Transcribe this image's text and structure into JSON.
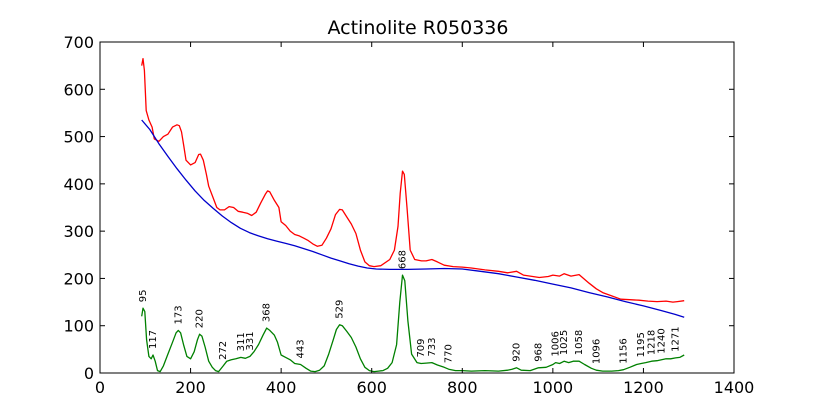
{
  "chart_data": {
    "type": "line",
    "title": "Actinolite R050336",
    "xlabel": "",
    "ylabel": "",
    "xlim": [
      0,
      1400
    ],
    "ylim": [
      0,
      700
    ],
    "grid": false,
    "x_ticks": [
      0,
      200,
      400,
      600,
      800,
      1000,
      1200,
      1400
    ],
    "y_ticks": [
      0,
      100,
      200,
      300,
      400,
      500,
      600,
      700
    ],
    "series": [
      {
        "color": "#ff0000",
        "points": [
          [
            92,
            650
          ],
          [
            95,
            665
          ],
          [
            98,
            640
          ],
          [
            102,
            555
          ],
          [
            108,
            535
          ],
          [
            115,
            520
          ],
          [
            120,
            495
          ],
          [
            130,
            490
          ],
          [
            140,
            500
          ],
          [
            150,
            505
          ],
          [
            160,
            520
          ],
          [
            170,
            525
          ],
          [
            175,
            523
          ],
          [
            180,
            510
          ],
          [
            185,
            480
          ],
          [
            190,
            450
          ],
          [
            200,
            440
          ],
          [
            210,
            445
          ],
          [
            218,
            462
          ],
          [
            222,
            463
          ],
          [
            228,
            450
          ],
          [
            235,
            420
          ],
          [
            240,
            395
          ],
          [
            250,
            370
          ],
          [
            258,
            350
          ],
          [
            265,
            345
          ],
          [
            275,
            345
          ],
          [
            285,
            352
          ],
          [
            295,
            350
          ],
          [
            305,
            342
          ],
          [
            315,
            340
          ],
          [
            325,
            338
          ],
          [
            335,
            333
          ],
          [
            345,
            340
          ],
          [
            355,
            360
          ],
          [
            365,
            378
          ],
          [
            370,
            385
          ],
          [
            375,
            383
          ],
          [
            385,
            365
          ],
          [
            395,
            350
          ],
          [
            400,
            320
          ],
          [
            410,
            312
          ],
          [
            420,
            300
          ],
          [
            430,
            293
          ],
          [
            440,
            290
          ],
          [
            450,
            285
          ],
          [
            460,
            280
          ],
          [
            470,
            273
          ],
          [
            480,
            268
          ],
          [
            490,
            270
          ],
          [
            500,
            285
          ],
          [
            510,
            305
          ],
          [
            520,
            335
          ],
          [
            529,
            346
          ],
          [
            535,
            345
          ],
          [
            545,
            330
          ],
          [
            555,
            315
          ],
          [
            565,
            295
          ],
          [
            575,
            260
          ],
          [
            585,
            235
          ],
          [
            595,
            227
          ],
          [
            605,
            225
          ],
          [
            620,
            227
          ],
          [
            640,
            240
          ],
          [
            650,
            260
          ],
          [
            658,
            310
          ],
          [
            663,
            380
          ],
          [
            668,
            427
          ],
          [
            672,
            420
          ],
          [
            678,
            350
          ],
          [
            685,
            260
          ],
          [
            695,
            240
          ],
          [
            710,
            237
          ],
          [
            720,
            237
          ],
          [
            733,
            240
          ],
          [
            745,
            235
          ],
          [
            760,
            228
          ],
          [
            780,
            225
          ],
          [
            800,
            224
          ],
          [
            820,
            222
          ],
          [
            850,
            218
          ],
          [
            880,
            215
          ],
          [
            900,
            212
          ],
          [
            920,
            215
          ],
          [
            935,
            207
          ],
          [
            950,
            205
          ],
          [
            970,
            202
          ],
          [
            990,
            204
          ],
          [
            1000,
            207
          ],
          [
            1015,
            205
          ],
          [
            1025,
            210
          ],
          [
            1040,
            205
          ],
          [
            1058,
            208
          ],
          [
            1070,
            198
          ],
          [
            1080,
            190
          ],
          [
            1096,
            178
          ],
          [
            1110,
            170
          ],
          [
            1130,
            163
          ],
          [
            1150,
            156
          ],
          [
            1170,
            155
          ],
          [
            1190,
            154
          ],
          [
            1210,
            152
          ],
          [
            1230,
            151
          ],
          [
            1250,
            152
          ],
          [
            1265,
            150
          ],
          [
            1275,
            151
          ],
          [
            1290,
            153
          ]
        ]
      },
      {
        "color": "#0000cc",
        "points": [
          [
            92,
            535
          ],
          [
            110,
            515
          ],
          [
            130,
            485
          ],
          [
            150,
            458
          ],
          [
            170,
            432
          ],
          [
            190,
            408
          ],
          [
            210,
            385
          ],
          [
            230,
            365
          ],
          [
            250,
            348
          ],
          [
            270,
            332
          ],
          [
            290,
            318
          ],
          [
            310,
            306
          ],
          [
            330,
            297
          ],
          [
            350,
            290
          ],
          [
            370,
            284
          ],
          [
            390,
            279
          ],
          [
            410,
            274
          ],
          [
            430,
            269
          ],
          [
            450,
            263
          ],
          [
            470,
            257
          ],
          [
            490,
            250
          ],
          [
            510,
            243
          ],
          [
            530,
            237
          ],
          [
            550,
            231
          ],
          [
            570,
            226
          ],
          [
            590,
            222
          ],
          [
            610,
            220
          ],
          [
            640,
            219
          ],
          [
            680,
            219
          ],
          [
            720,
            220
          ],
          [
            760,
            221
          ],
          [
            800,
            220
          ],
          [
            840,
            215
          ],
          [
            880,
            210
          ],
          [
            920,
            203
          ],
          [
            960,
            196
          ],
          [
            1000,
            188
          ],
          [
            1040,
            180
          ],
          [
            1080,
            170
          ],
          [
            1120,
            161
          ],
          [
            1160,
            151
          ],
          [
            1200,
            142
          ],
          [
            1240,
            132
          ],
          [
            1270,
            124
          ],
          [
            1290,
            118
          ]
        ]
      },
      {
        "color": "#008000",
        "points": [
          [
            92,
            120
          ],
          [
            95,
            137
          ],
          [
            99,
            130
          ],
          [
            103,
            70
          ],
          [
            108,
            35
          ],
          [
            113,
            30
          ],
          [
            117,
            38
          ],
          [
            122,
            25
          ],
          [
            127,
            5
          ],
          [
            133,
            3
          ],
          [
            140,
            15
          ],
          [
            150,
            40
          ],
          [
            160,
            65
          ],
          [
            168,
            85
          ],
          [
            173,
            90
          ],
          [
            178,
            85
          ],
          [
            185,
            58
          ],
          [
            192,
            35
          ],
          [
            200,
            30
          ],
          [
            208,
            45
          ],
          [
            215,
            70
          ],
          [
            220,
            82
          ],
          [
            225,
            78
          ],
          [
            232,
            55
          ],
          [
            240,
            25
          ],
          [
            248,
            12
          ],
          [
            255,
            5
          ],
          [
            262,
            3
          ],
          [
            272,
            15
          ],
          [
            280,
            25
          ],
          [
            290,
            28
          ],
          [
            300,
            30
          ],
          [
            311,
            33
          ],
          [
            321,
            31
          ],
          [
            331,
            35
          ],
          [
            340,
            45
          ],
          [
            350,
            60
          ],
          [
            360,
            80
          ],
          [
            368,
            95
          ],
          [
            375,
            90
          ],
          [
            385,
            80
          ],
          [
            392,
            65
          ],
          [
            400,
            38
          ],
          [
            410,
            33
          ],
          [
            420,
            28
          ],
          [
            430,
            20
          ],
          [
            443,
            18
          ],
          [
            455,
            10
          ],
          [
            465,
            4
          ],
          [
            475,
            3
          ],
          [
            485,
            6
          ],
          [
            495,
            15
          ],
          [
            505,
            40
          ],
          [
            515,
            70
          ],
          [
            522,
            92
          ],
          [
            529,
            102
          ],
          [
            535,
            100
          ],
          [
            545,
            88
          ],
          [
            555,
            75
          ],
          [
            565,
            55
          ],
          [
            575,
            30
          ],
          [
            585,
            12
          ],
          [
            595,
            5
          ],
          [
            605,
            3
          ],
          [
            615,
            4
          ],
          [
            625,
            5
          ],
          [
            635,
            10
          ],
          [
            645,
            22
          ],
          [
            655,
            60
          ],
          [
            662,
            150
          ],
          [
            668,
            207
          ],
          [
            673,
            195
          ],
          [
            680,
            110
          ],
          [
            688,
            40
          ],
          [
            700,
            22
          ],
          [
            709,
            20
          ],
          [
            720,
            21
          ],
          [
            733,
            22
          ],
          [
            745,
            17
          ],
          [
            760,
            12
          ],
          [
            770,
            8
          ],
          [
            785,
            5
          ],
          [
            800,
            5
          ],
          [
            820,
            4
          ],
          [
            850,
            5
          ],
          [
            880,
            4
          ],
          [
            900,
            6
          ],
          [
            910,
            8
          ],
          [
            920,
            11
          ],
          [
            930,
            6
          ],
          [
            950,
            5
          ],
          [
            968,
            11
          ],
          [
            985,
            12
          ],
          [
            1000,
            18
          ],
          [
            1006,
            22
          ],
          [
            1015,
            20
          ],
          [
            1025,
            25
          ],
          [
            1035,
            22
          ],
          [
            1045,
            25
          ],
          [
            1058,
            25
          ],
          [
            1070,
            18
          ],
          [
            1085,
            10
          ],
          [
            1096,
            6
          ],
          [
            1110,
            4
          ],
          [
            1130,
            4
          ],
          [
            1145,
            5
          ],
          [
            1156,
            7
          ],
          [
            1170,
            12
          ],
          [
            1185,
            18
          ],
          [
            1195,
            20
          ],
          [
            1205,
            22
          ],
          [
            1218,
            25
          ],
          [
            1230,
            26
          ],
          [
            1240,
            28
          ],
          [
            1250,
            30
          ],
          [
            1260,
            30
          ],
          [
            1271,
            32
          ],
          [
            1280,
            33
          ],
          [
            1290,
            38
          ]
        ]
      }
    ],
    "peak_labels": [
      {
        "x": 95,
        "y": 137,
        "text": "95"
      },
      {
        "x": 117,
        "y": 38,
        "text": "117"
      },
      {
        "x": 173,
        "y": 90,
        "text": "173"
      },
      {
        "x": 220,
        "y": 82,
        "text": "220"
      },
      {
        "x": 272,
        "y": 15,
        "text": "272"
      },
      {
        "x": 311,
        "y": 33,
        "text": "311"
      },
      {
        "x": 331,
        "y": 35,
        "text": "331"
      },
      {
        "x": 368,
        "y": 95,
        "text": "368"
      },
      {
        "x": 443,
        "y": 18,
        "text": "443"
      },
      {
        "x": 529,
        "y": 102,
        "text": "529"
      },
      {
        "x": 668,
        "y": 207,
        "text": "668"
      },
      {
        "x": 709,
        "y": 20,
        "text": "709"
      },
      {
        "x": 733,
        "y": 22,
        "text": "733"
      },
      {
        "x": 770,
        "y": 8,
        "text": "770"
      },
      {
        "x": 920,
        "y": 11,
        "text": "920"
      },
      {
        "x": 968,
        "y": 11,
        "text": "968"
      },
      {
        "x": 1006,
        "y": 22,
        "text": "1006"
      },
      {
        "x": 1025,
        "y": 25,
        "text": "1025"
      },
      {
        "x": 1058,
        "y": 25,
        "text": "1058"
      },
      {
        "x": 1096,
        "y": 6,
        "text": "1096"
      },
      {
        "x": 1156,
        "y": 7,
        "text": "1156"
      },
      {
        "x": 1195,
        "y": 20,
        "text": "1195"
      },
      {
        "x": 1218,
        "y": 25,
        "text": "1218"
      },
      {
        "x": 1240,
        "y": 28,
        "text": "1240"
      },
      {
        "x": 1271,
        "y": 32,
        "text": "1271"
      }
    ]
  }
}
